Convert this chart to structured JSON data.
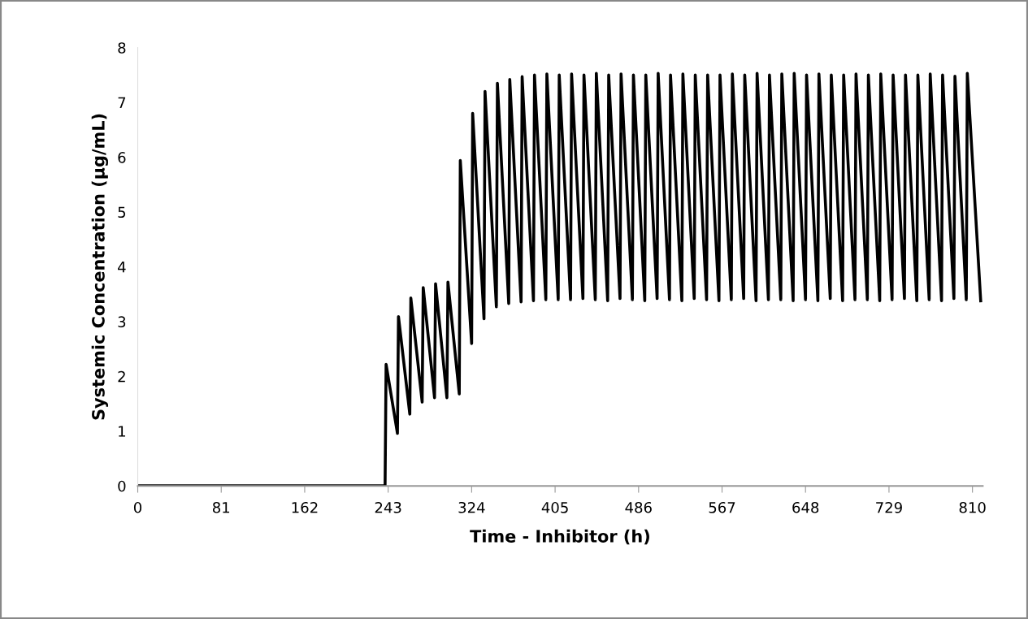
{
  "chart_data": {
    "type": "line",
    "xlabel": "Time - Inhibitor (h)",
    "ylabel": "Systemic Concentration (µg/mL)",
    "xlim": [
      0,
      820
    ],
    "xticks": [
      0,
      81,
      162,
      243,
      324,
      405,
      486,
      567,
      648,
      729,
      810
    ],
    "ylim": [
      0,
      8
    ],
    "yticks": [
      0,
      1,
      2,
      3,
      4,
      5,
      6,
      7,
      8
    ],
    "grid": false,
    "legend": false,
    "marker": "none",
    "line_style": "solid",
    "series": [
      {
        "color": "#000000",
        "x": [
          0,
          240,
          241,
          252,
          253,
          264,
          265,
          276,
          277,
          288,
          289,
          300,
          301,
          312,
          313,
          324,
          325,
          336,
          337,
          348,
          349,
          360,
          361,
          372,
          373,
          384,
          385,
          396,
          397,
          408,
          409,
          420,
          421,
          432,
          433,
          444,
          445,
          456,
          457,
          468,
          469,
          480,
          481,
          492,
          493,
          504,
          505,
          516,
          517,
          528,
          529,
          540,
          541,
          552,
          553,
          564,
          565,
          576,
          577,
          588,
          589,
          600,
          601,
          612,
          613,
          624,
          625,
          636,
          637,
          648,
          649,
          660,
          661,
          672,
          673,
          684,
          685,
          696,
          697,
          708,
          709,
          720,
          721,
          732,
          733,
          744,
          745,
          756,
          757,
          768,
          769,
          780,
          781,
          792,
          793,
          804,
          805,
          818
        ],
        "values": [
          0,
          0,
          2.22,
          0.96,
          3.09,
          1.31,
          3.43,
          1.53,
          3.62,
          1.61,
          3.69,
          1.61,
          3.72,
          1.68,
          5.94,
          2.6,
          6.8,
          3.05,
          7.2,
          3.27,
          7.35,
          3.33,
          7.42,
          3.36,
          7.47,
          3.38,
          7.5,
          3.4,
          7.52,
          3.4,
          7.5,
          3.4,
          7.52,
          3.42,
          7.5,
          3.4,
          7.53,
          3.38,
          7.5,
          3.42,
          7.52,
          3.4,
          7.5,
          3.38,
          7.5,
          3.42,
          7.53,
          3.4,
          7.5,
          3.38,
          7.52,
          3.42,
          7.5,
          3.4,
          7.5,
          3.38,
          7.5,
          3.4,
          7.52,
          3.42,
          7.5,
          3.38,
          7.53,
          3.4,
          7.5,
          3.4,
          7.52,
          3.38,
          7.53,
          3.4,
          7.5,
          3.38,
          7.52,
          3.42,
          7.5,
          3.38,
          7.5,
          3.4,
          7.52,
          3.4,
          7.5,
          3.38,
          7.52,
          3.4,
          7.5,
          3.42,
          7.5,
          3.38,
          7.5,
          3.4,
          7.52,
          3.38,
          7.5,
          3.42,
          7.48,
          3.4,
          7.53,
          3.38
        ]
      }
    ]
  }
}
